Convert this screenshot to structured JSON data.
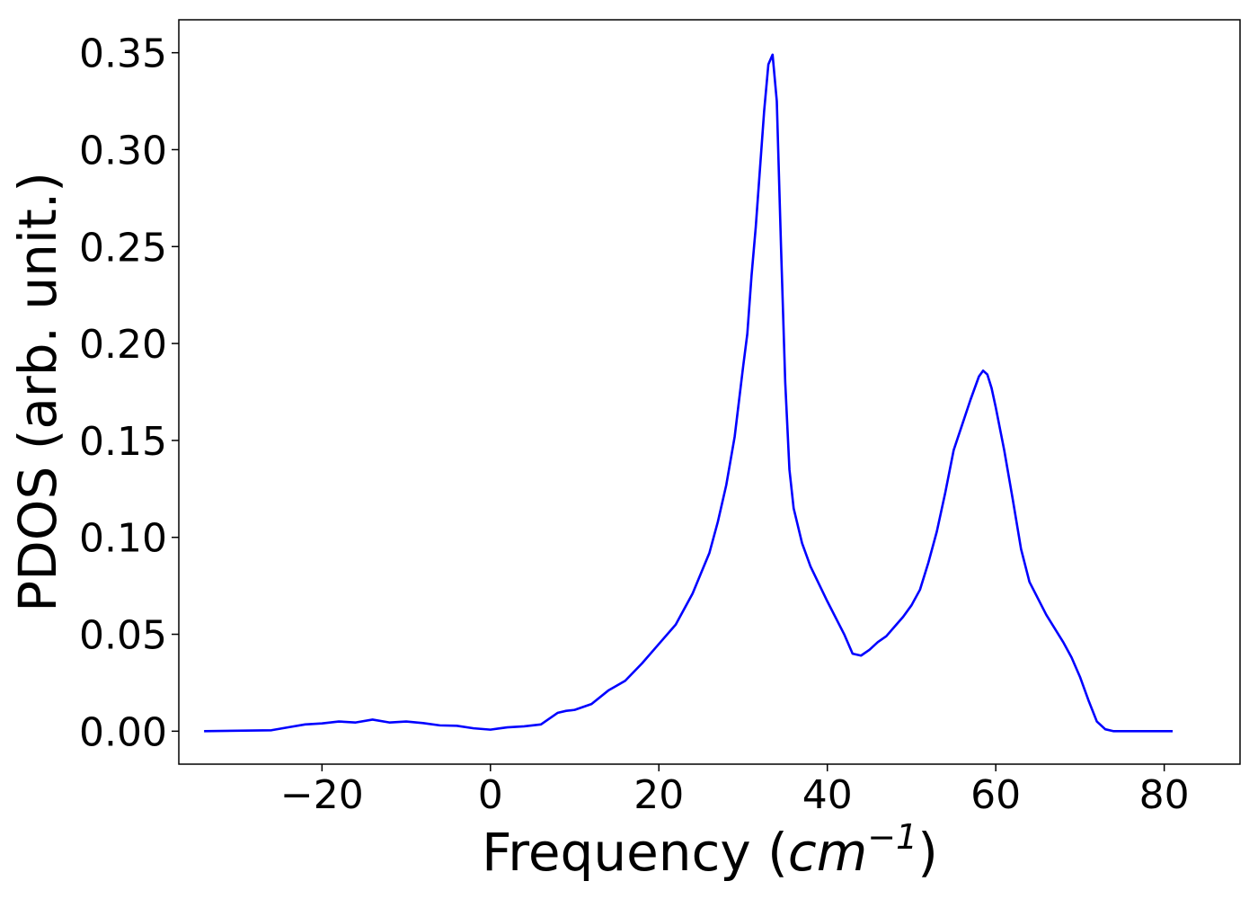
{
  "chart_data": {
    "type": "line",
    "title": "",
    "xlabel": "Frequency",
    "xlabel_unit_base": "cm",
    "xlabel_unit_exp": "−1",
    "ylabel": "PDOS (arb. unit.)",
    "xlim": [
      -37,
      89
    ],
    "ylim": [
      -0.017,
      0.367
    ],
    "xticks": [
      -20,
      0,
      20,
      40,
      60,
      80
    ],
    "xtick_labels": [
      "−20",
      "0",
      "20",
      "40",
      "60",
      "80"
    ],
    "yticks": [
      0.0,
      0.05,
      0.1,
      0.15,
      0.2,
      0.25,
      0.3,
      0.35
    ],
    "ytick_labels": [
      "0.00",
      "0.05",
      "0.10",
      "0.15",
      "0.20",
      "0.25",
      "0.30",
      "0.35"
    ],
    "grid": false,
    "legend": "none",
    "series": [
      {
        "color": "#0000ff",
        "x": [
          -34,
          -26,
          -24,
          -22,
          -20,
          -18,
          -16,
          -14,
          -12,
          -10,
          -8,
          -6,
          -4,
          -2,
          0,
          1,
          2,
          4,
          6,
          7,
          8,
          9,
          10,
          12,
          14,
          16,
          18,
          20,
          22,
          24,
          26,
          27,
          28,
          29,
          30,
          30.5,
          31,
          31.5,
          32,
          32.5,
          33,
          33.5,
          34,
          34.5,
          35,
          35.5,
          36,
          37,
          38,
          40,
          42,
          43,
          44,
          45,
          46,
          47,
          48,
          49,
          50,
          51,
          52,
          53,
          54,
          55,
          56,
          57,
          58,
          58.5,
          59,
          59.5,
          60,
          61,
          62,
          63,
          64,
          66,
          68,
          69,
          70,
          71,
          72,
          73,
          74,
          81
        ],
        "y": [
          0.0,
          0.0005,
          0.002,
          0.0035,
          0.004,
          0.005,
          0.0045,
          0.006,
          0.0045,
          0.005,
          0.0042,
          0.003,
          0.0028,
          0.0015,
          0.0008,
          0.0014,
          0.002,
          0.0025,
          0.0035,
          0.0065,
          0.0095,
          0.0105,
          0.011,
          0.014,
          0.021,
          0.026,
          0.035,
          0.045,
          0.055,
          0.071,
          0.092,
          0.108,
          0.127,
          0.152,
          0.188,
          0.205,
          0.235,
          0.26,
          0.29,
          0.32,
          0.344,
          0.349,
          0.325,
          0.25,
          0.18,
          0.135,
          0.115,
          0.097,
          0.085,
          0.067,
          0.05,
          0.04,
          0.039,
          0.042,
          0.046,
          0.049,
          0.054,
          0.059,
          0.065,
          0.073,
          0.087,
          0.103,
          0.123,
          0.145,
          0.158,
          0.171,
          0.183,
          0.186,
          0.184,
          0.177,
          0.167,
          0.145,
          0.12,
          0.094,
          0.077,
          0.06,
          0.046,
          0.038,
          0.028,
          0.016,
          0.005,
          0.001,
          0.0,
          0.0
        ]
      }
    ]
  }
}
